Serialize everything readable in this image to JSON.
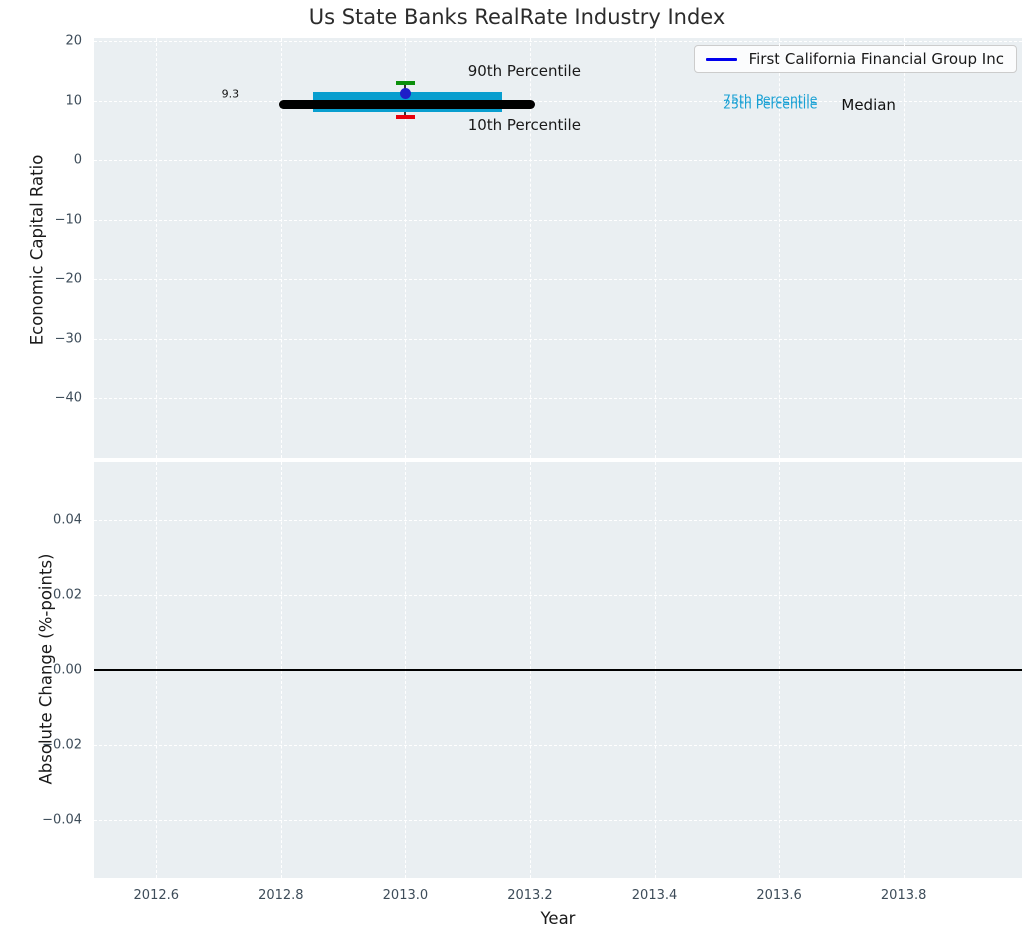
{
  "chart_data": {
    "type": "line",
    "title": "Us State Banks RealRate Industry Index",
    "xlabel": "Year",
    "xlim": [
      2012.5,
      2013.99
    ],
    "xticks": [
      {
        "v": 2012.6,
        "label": "2012.6"
      },
      {
        "v": 2012.8,
        "label": "2012.8"
      },
      {
        "v": 2013.0,
        "label": "2013.0"
      },
      {
        "v": 2013.2,
        "label": "2013.2"
      },
      {
        "v": 2013.4,
        "label": "2013.4"
      },
      {
        "v": 2013.6,
        "label": "2013.6"
      },
      {
        "v": 2013.8,
        "label": "2013.8"
      }
    ],
    "legend": {
      "label": "First California Financial Group Inc",
      "color": "#0000EE",
      "location": "upper right"
    },
    "plot_bg": "#eaeff2",
    "grid_color": "#ffffff",
    "tick_color": "#3d4c59",
    "panels": [
      {
        "name": "economic-capital-ratio",
        "ylabel": "Economic Capital Ratio",
        "ylim": [
          -50,
          20.5
        ],
        "yticks": [
          {
            "v": 20,
            "label": "20"
          },
          {
            "v": 10,
            "label": "10"
          },
          {
            "v": 0,
            "label": "0"
          },
          {
            "v": -10,
            "label": "−10"
          },
          {
            "v": -20,
            "label": "−20"
          },
          {
            "v": -30,
            "label": "−30"
          },
          {
            "v": -40,
            "label": "−40"
          }
        ],
        "industry_box": {
          "year": 2013.0,
          "median": 9.3,
          "median_label": "9.3",
          "median_xspan": [
            2012.797,
            2013.208
          ],
          "p75": 11.4,
          "p25": 8.0,
          "box_xspan": [
            2012.851,
            2013.155
          ],
          "p90": 13.0,
          "p10": 7.2,
          "company_point": {
            "name": "First California Financial Group Inc",
            "year": 2013.0,
            "value": 11.1
          },
          "colors": {
            "median": "#000000",
            "box": "#089ECF",
            "p90_cap": "#0B8F0B",
            "p10_cap": "#E8000B",
            "whisker": "#333333",
            "point": "#1E1EC8"
          }
        },
        "annotations": [
          {
            "text": "90th Percentile",
            "x": 2013.1,
            "y": 14.9,
            "ha": "left",
            "color": "#1a1a1a",
            "size": 15
          },
          {
            "text": "10th Percentile",
            "x": 2013.1,
            "y": 5.9,
            "ha": "left",
            "color": "#1a1a1a",
            "size": 15
          },
          {
            "text": "75th Percentile",
            "x": 2013.51,
            "y": 10.2,
            "ha": "left",
            "color": "#18A0D4",
            "size": 12.5
          },
          {
            "text": "25th Percentile",
            "x": 2013.51,
            "y": 9.5,
            "ha": "left",
            "color": "#18A0D4",
            "size": 12.5
          },
          {
            "text": "Median",
            "x": 2013.7,
            "y": 9.3,
            "ha": "left",
            "color": "#111111",
            "size": 15
          },
          {
            "text": "9.3",
            "x": 2012.733,
            "y": 11.1,
            "ha": "right",
            "color": "#111111",
            "size": 11
          }
        ]
      },
      {
        "name": "absolute-change",
        "ylabel": "Absolute Change (%-points)",
        "ylim": [
          -0.0555,
          0.0555
        ],
        "yticks": [
          {
            "v": 0.04,
            "label": "0.04"
          },
          {
            "v": 0.02,
            "label": "0.02"
          },
          {
            "v": 0.0,
            "label": "0.00"
          },
          {
            "v": -0.02,
            "label": "−0.02"
          },
          {
            "v": -0.04,
            "label": "−0.04"
          }
        ],
        "zero_line": {
          "value": 0.0,
          "color": "#000000"
        }
      }
    ]
  }
}
